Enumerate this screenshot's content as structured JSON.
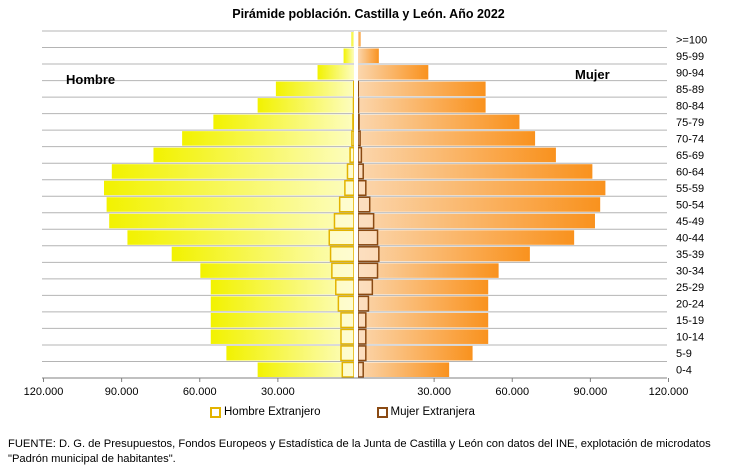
{
  "chart_data": {
    "type": "bar",
    "orientation": "horizontal-pyramid",
    "title": "Pirámide población. Castilla y León. Año 2022",
    "categories": [
      "0-4",
      "5-9",
      "10-14",
      "15-19",
      "20-24",
      "25-29",
      "30-34",
      "35-39",
      "40-44",
      "45-49",
      "50-54",
      "55-59",
      "60-64",
      "65-69",
      "70-74",
      "75-79",
      "80-84",
      "85-89",
      "90-94",
      "95-99",
      ">=100"
    ],
    "left_label": "Hombre",
    "right_label": "Mujer",
    "xlim": [
      -120000,
      120000
    ],
    "xticks": [
      -120000,
      -90000,
      -60000,
      -30000,
      30000,
      60000,
      90000,
      120000
    ],
    "xtick_labels": [
      "120.000",
      "90.000",
      "60.000",
      "30.000",
      "30.000",
      "60.000",
      "90.000",
      "120.000"
    ],
    "series": [
      {
        "side": "left",
        "values": [
          37000,
          49000,
          55000,
          55000,
          55000,
          55000,
          59000,
          70000,
          87000,
          94000,
          95000,
          96000,
          93000,
          77000,
          66000,
          54000,
          37000,
          30000,
          14000,
          4000,
          1000
        ]
      },
      {
        "side": "right",
        "values": [
          35000,
          44000,
          50000,
          50000,
          50000,
          50000,
          54000,
          66000,
          83000,
          91000,
          93000,
          95000,
          90000,
          76000,
          68000,
          62000,
          49000,
          49000,
          27000,
          8000,
          1000
        ]
      },
      {
        "name": "Hombre Extranjero",
        "side": "left",
        "values": [
          4500,
          5000,
          5000,
          5000,
          6000,
          7000,
          8500,
          9000,
          9500,
          7500,
          5500,
          3500,
          2500,
          1500,
          800,
          400,
          200,
          100,
          0,
          0,
          0
        ]
      },
      {
        "name": "Mujer Extranjera",
        "side": "right",
        "values": [
          2000,
          3000,
          3000,
          3000,
          4000,
          5500,
          7500,
          8000,
          7500,
          6000,
          4500,
          3000,
          2000,
          1300,
          800,
          400,
          200,
          100,
          0,
          0,
          0
        ]
      }
    ],
    "colors": {
      "hombre_dark": "#f2f200",
      "hombre_light": "#fdfdc0",
      "mujer_light": "#fbd6ad",
      "mujer_dark": "#f9921e",
      "hombre_extranjero_border": "#e3b300",
      "mujer_extranjera_border": "#8a4a13",
      "grid": "#b4b4b4"
    },
    "legend": [
      "Hombre Extranjero",
      "Mujer Extranjera"
    ],
    "legend_position": "bottom",
    "grid": true
  },
  "footnote": "FUENTE: D. G. de Presupuestos, Fondos Europeos y Estadística de la Junta de Castilla y León con datos del INE, explotación de microdatos \"Padrón municipal de habitantes\"."
}
